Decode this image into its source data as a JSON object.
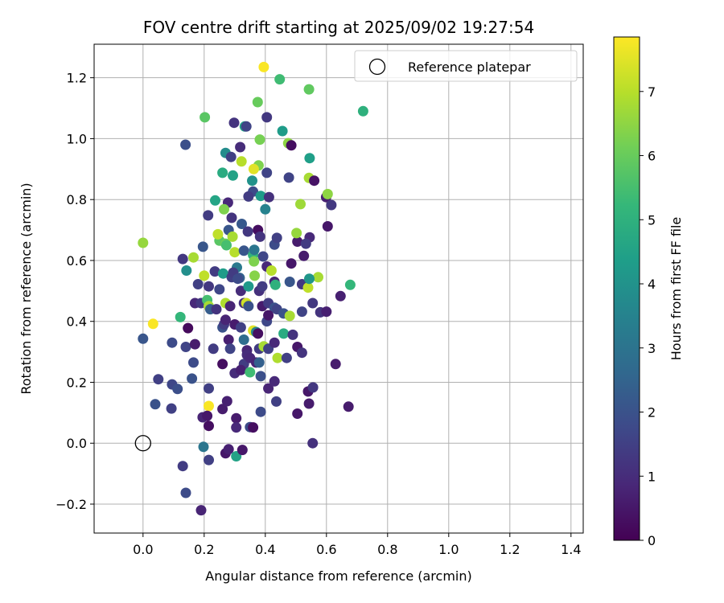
{
  "chart_data": {
    "type": "scatter",
    "title": "FOV centre drift starting at 2025/09/02 19:27:54",
    "xlabel": "Angular distance from reference (arcmin)",
    "ylabel": "Rotation from reference (arcmin)",
    "xlim": [
      -0.16,
      1.44
    ],
    "ylim": [
      -0.295,
      1.31
    ],
    "xticks": [
      0.0,
      0.2,
      0.4,
      0.6,
      0.8,
      1.0,
      1.2,
      1.4
    ],
    "xtick_labels": [
      "0.0",
      "0.2",
      "0.4",
      "0.6",
      "0.8",
      "1.0",
      "1.2",
      "1.4"
    ],
    "yticks": [
      -0.2,
      0.0,
      0.2,
      0.4,
      0.6,
      0.8,
      1.0,
      1.2
    ],
    "ytick_labels": [
      "−0.2",
      "0.0",
      "0.2",
      "0.4",
      "0.6",
      "0.8",
      "1.0",
      "1.2"
    ],
    "grid": true,
    "legend": {
      "placement": "top-right",
      "entries": [
        "Reference platepar"
      ]
    },
    "reference_point": {
      "x": 0.0,
      "y": 0.0
    },
    "colorbar": {
      "label": "Hours from first FF file",
      "colormap": "viridis",
      "range": [
        0,
        7.85
      ],
      "ticks": [
        0,
        1,
        2,
        3,
        4,
        5,
        6,
        7
      ],
      "tick_labels": [
        "0",
        "1",
        "2",
        "3",
        "4",
        "5",
        "6",
        "7"
      ]
    },
    "points": [
      [
        0.395,
        1.235,
        7.8
      ],
      [
        0.447,
        1.195,
        5.4
      ],
      [
        0.543,
        1.162,
        5.9
      ],
      [
        0.72,
        1.09,
        5.0
      ],
      [
        0.375,
        1.12,
        6.0
      ],
      [
        0.202,
        1.07,
        5.8
      ],
      [
        0.298,
        1.052,
        1.2
      ],
      [
        0.333,
        1.04,
        4.5
      ],
      [
        0.338,
        1.04,
        1.6
      ],
      [
        0.405,
        1.07,
        1.3
      ],
      [
        0.456,
        1.025,
        4.3
      ],
      [
        0.139,
        0.98,
        1.9
      ],
      [
        0.318,
        0.972,
        1.0
      ],
      [
        0.382,
        0.997,
        6.2
      ],
      [
        0.475,
        0.985,
        6.5
      ],
      [
        0.485,
        0.978,
        0.3
      ],
      [
        0.27,
        0.953,
        3.8
      ],
      [
        0.288,
        0.94,
        1.5
      ],
      [
        0.322,
        0.925,
        7.0
      ],
      [
        0.378,
        0.912,
        6.3
      ],
      [
        0.545,
        0.936,
        4.4
      ],
      [
        0.26,
        0.888,
        4.8
      ],
      [
        0.294,
        0.879,
        4.5
      ],
      [
        0.362,
        0.9,
        7.5
      ],
      [
        0.357,
        0.862,
        4.0
      ],
      [
        0.405,
        0.888,
        1.6
      ],
      [
        0.477,
        0.872,
        1.6
      ],
      [
        0.543,
        0.871,
        6.8
      ],
      [
        0.56,
        0.862,
        0.4
      ],
      [
        0.599,
        0.808,
        0.7
      ],
      [
        0.604,
        0.818,
        6.5
      ],
      [
        0.616,
        0.782,
        1.3
      ],
      [
        0.236,
        0.797,
        4.6
      ],
      [
        0.278,
        0.79,
        0.9
      ],
      [
        0.36,
        0.826,
        1.8
      ],
      [
        0.385,
        0.812,
        4.3
      ],
      [
        0.412,
        0.808,
        1.1
      ],
      [
        0.265,
        0.768,
        6.3
      ],
      [
        0.213,
        0.748,
        1.4
      ],
      [
        0.29,
        0.74,
        1.2
      ],
      [
        0.323,
        0.72,
        2.2
      ],
      [
        0.345,
        0.81,
        1.4
      ],
      [
        0.376,
        0.7,
        0.3
      ],
      [
        0.4,
        0.768,
        3.5
      ],
      [
        0.515,
        0.785,
        6.7
      ],
      [
        0.604,
        0.712,
        0.5
      ],
      [
        0.25,
        0.665,
        5.8
      ],
      [
        0.245,
        0.686,
        7.1
      ],
      [
        0.27,
        0.655,
        6.0
      ],
      [
        0.28,
        0.7,
        2.1
      ],
      [
        0.293,
        0.678,
        6.8
      ],
      [
        0.343,
        0.695,
        1.3
      ],
      [
        0.383,
        0.678,
        1.2
      ],
      [
        0.43,
        0.652,
        1.8
      ],
      [
        0.438,
        0.674,
        1.5
      ],
      [
        0.505,
        0.662,
        0.6
      ],
      [
        0.502,
        0.69,
        6.6
      ],
      [
        0.545,
        0.676,
        0.9
      ],
      [
        0.533,
        0.655,
        1.4
      ],
      [
        0.0,
        0.658,
        6.6
      ],
      [
        0.196,
        0.645,
        2.1
      ],
      [
        0.13,
        0.605,
        1.3
      ],
      [
        0.165,
        0.61,
        6.8
      ],
      [
        0.273,
        0.65,
        5.5
      ],
      [
        0.3,
        0.627,
        7.0
      ],
      [
        0.33,
        0.632,
        2.1
      ],
      [
        0.36,
        0.618,
        5.1
      ],
      [
        0.364,
        0.635,
        3.1
      ],
      [
        0.393,
        0.613,
        1.7
      ],
      [
        0.526,
        0.615,
        0.6
      ],
      [
        0.142,
        0.567,
        3.9
      ],
      [
        0.235,
        0.564,
        1.4
      ],
      [
        0.262,
        0.557,
        4.3
      ],
      [
        0.307,
        0.577,
        3.2
      ],
      [
        0.316,
        0.543,
        2.4
      ],
      [
        0.363,
        0.597,
        6.3
      ],
      [
        0.405,
        0.58,
        0.9
      ],
      [
        0.42,
        0.567,
        7.0
      ],
      [
        0.485,
        0.59,
        0.5
      ],
      [
        0.573,
        0.545,
        6.8
      ],
      [
        0.18,
        0.522,
        1.5
      ],
      [
        0.2,
        0.55,
        7.1
      ],
      [
        0.215,
        0.515,
        1.3
      ],
      [
        0.25,
        0.505,
        1.7
      ],
      [
        0.29,
        0.545,
        1.5
      ],
      [
        0.295,
        0.56,
        1.4
      ],
      [
        0.31,
        0.54,
        1.8
      ],
      [
        0.32,
        0.5,
        1.0
      ],
      [
        0.345,
        0.515,
        4.2
      ],
      [
        0.365,
        0.55,
        6.4
      ],
      [
        0.38,
        0.5,
        1.1
      ],
      [
        0.39,
        0.515,
        1.4
      ],
      [
        0.43,
        0.53,
        0.8
      ],
      [
        0.433,
        0.52,
        5.0
      ],
      [
        0.48,
        0.53,
        2.1
      ],
      [
        0.52,
        0.522,
        1.3
      ],
      [
        0.54,
        0.511,
        7.1
      ],
      [
        0.544,
        0.54,
        4.1
      ],
      [
        0.678,
        0.52,
        5.2
      ],
      [
        0.646,
        0.483,
        0.7
      ],
      [
        0.17,
        0.46,
        0.9
      ],
      [
        0.19,
        0.46,
        1.3
      ],
      [
        0.21,
        0.47,
        5.5
      ],
      [
        0.215,
        0.45,
        6.8
      ],
      [
        0.22,
        0.44,
        2.3
      ],
      [
        0.24,
        0.44,
        1.2
      ],
      [
        0.27,
        0.46,
        6.9
      ],
      [
        0.285,
        0.45,
        0.8
      ],
      [
        0.33,
        0.46,
        1.1
      ],
      [
        0.338,
        0.46,
        7.3
      ],
      [
        0.345,
        0.45,
        2.0
      ],
      [
        0.39,
        0.45,
        0.6
      ],
      [
        0.41,
        0.46,
        1.4
      ],
      [
        0.43,
        0.445,
        2.0
      ],
      [
        0.438,
        0.44,
        1.6
      ],
      [
        0.46,
        0.426,
        2.0
      ],
      [
        0.48,
        0.418,
        6.8
      ],
      [
        0.52,
        0.432,
        1.6
      ],
      [
        0.555,
        0.46,
        1.3
      ],
      [
        0.58,
        0.43,
        1.2
      ],
      [
        0.6,
        0.432,
        0.7
      ],
      [
        0.122,
        0.414,
        5.2
      ],
      [
        0.033,
        0.392,
        7.8
      ],
      [
        0.147,
        0.378,
        0.2
      ],
      [
        0.26,
        0.38,
        2.0
      ],
      [
        0.265,
        0.39,
        1.4
      ],
      [
        0.27,
        0.405,
        0.8
      ],
      [
        0.3,
        0.39,
        0.6
      ],
      [
        0.32,
        0.38,
        1.5
      ],
      [
        0.36,
        0.37,
        7.5
      ],
      [
        0.37,
        0.365,
        3.5
      ],
      [
        0.376,
        0.36,
        0.3
      ],
      [
        0.405,
        0.4,
        1.7
      ],
      [
        0.41,
        0.42,
        0.5
      ],
      [
        0.46,
        0.36,
        4.8
      ],
      [
        0.49,
        0.356,
        1.2
      ],
      [
        0.0,
        0.343,
        2.1
      ],
      [
        0.095,
        0.33,
        1.8
      ],
      [
        0.14,
        0.316,
        1.6
      ],
      [
        0.17,
        0.325,
        0.6
      ],
      [
        0.23,
        0.31,
        1.4
      ],
      [
        0.28,
        0.34,
        0.7
      ],
      [
        0.285,
        0.31,
        1.6
      ],
      [
        0.33,
        0.34,
        2.8
      ],
      [
        0.34,
        0.305,
        0.8
      ],
      [
        0.38,
        0.31,
        1.4
      ],
      [
        0.395,
        0.318,
        6.8
      ],
      [
        0.41,
        0.31,
        1.5
      ],
      [
        0.43,
        0.33,
        0.9
      ],
      [
        0.505,
        0.316,
        0.5
      ],
      [
        0.52,
        0.297,
        1.2
      ],
      [
        0.165,
        0.265,
        1.8
      ],
      [
        0.26,
        0.26,
        0.3
      ],
      [
        0.33,
        0.26,
        1.4
      ],
      [
        0.34,
        0.29,
        1.0
      ],
      [
        0.35,
        0.28,
        0.9
      ],
      [
        0.37,
        0.265,
        0.8
      ],
      [
        0.38,
        0.265,
        2.4
      ],
      [
        0.44,
        0.28,
        6.9
      ],
      [
        0.47,
        0.28,
        1.5
      ],
      [
        0.63,
        0.26,
        0.6
      ],
      [
        0.05,
        0.21,
        1.5
      ],
      [
        0.16,
        0.212,
        2.0
      ],
      [
        0.3,
        0.23,
        1.0
      ],
      [
        0.32,
        0.24,
        0.7
      ],
      [
        0.35,
        0.233,
        5.4
      ],
      [
        0.385,
        0.22,
        1.9
      ],
      [
        0.41,
        0.18,
        0.8
      ],
      [
        0.43,
        0.203,
        0.9
      ],
      [
        0.095,
        0.193,
        1.7
      ],
      [
        0.113,
        0.178,
        1.9
      ],
      [
        0.215,
        0.18,
        1.5
      ],
      [
        0.54,
        0.17,
        0.5
      ],
      [
        0.556,
        0.183,
        1.3
      ],
      [
        0.04,
        0.128,
        2.0
      ],
      [
        0.093,
        0.114,
        1.5
      ],
      [
        0.215,
        0.122,
        7.8
      ],
      [
        0.26,
        0.112,
        0.6
      ],
      [
        0.275,
        0.138,
        0.7
      ],
      [
        0.436,
        0.137,
        1.5
      ],
      [
        0.505,
        0.097,
        0.5
      ],
      [
        0.543,
        0.13,
        0.6
      ],
      [
        0.672,
        0.12,
        0.6
      ],
      [
        0.195,
        0.085,
        0.8
      ],
      [
        0.21,
        0.09,
        0.5
      ],
      [
        0.215,
        0.057,
        0.3
      ],
      [
        0.305,
        0.082,
        0.6
      ],
      [
        0.305,
        0.052,
        0.9
      ],
      [
        0.35,
        0.053,
        1.8
      ],
      [
        0.36,
        0.052,
        0.3
      ],
      [
        0.385,
        0.103,
        1.8
      ],
      [
        0.555,
        0.0,
        1.1
      ],
      [
        0.198,
        -0.012,
        3.1
      ],
      [
        0.27,
        -0.033,
        0.5
      ],
      [
        0.28,
        -0.02,
        0.7
      ],
      [
        0.305,
        -0.043,
        4.5
      ],
      [
        0.325,
        -0.022,
        0.5
      ],
      [
        0.215,
        -0.055,
        1.5
      ],
      [
        0.13,
        -0.075,
        1.4
      ],
      [
        0.14,
        -0.163,
        1.8
      ],
      [
        0.19,
        -0.22,
        0.8
      ]
    ]
  }
}
